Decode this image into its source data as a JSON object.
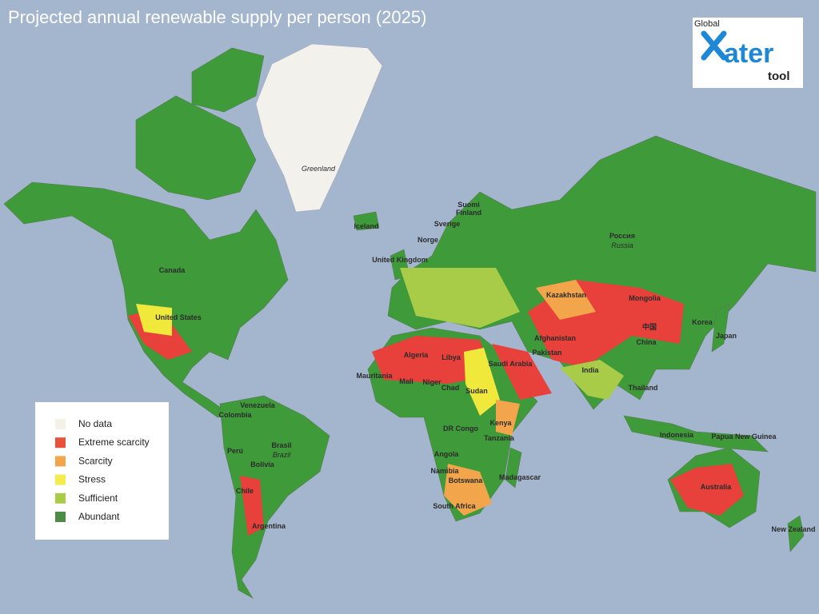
{
  "header": {
    "title": "Projected annual renewable supply per person (2025)"
  },
  "logo": {
    "top": "Global",
    "main": "ater",
    "bottom": "tool"
  },
  "legend": {
    "items": [
      {
        "label": "No data",
        "color": "#f3f1e8"
      },
      {
        "label": "Extreme scarcity",
        "color": "#e8523d"
      },
      {
        "label": "Scarcity",
        "color": "#f2a54a"
      },
      {
        "label": "Stress",
        "color": "#f3ec4a"
      },
      {
        "label": "Sufficient",
        "color": "#a9cc48"
      },
      {
        "label": "Abundant",
        "color": "#4d8c45"
      }
    ]
  },
  "map_labels": [
    "Greenland",
    "Iceland",
    "Canada",
    "United States",
    "Venezuela",
    "Colombia",
    "Brasil",
    "Brazil",
    "Perú",
    "Bolivia",
    "Chile",
    "Argentina",
    "Suomi",
    "Finland",
    "Sverige",
    "Norge",
    "United Kingdom",
    "Россия",
    "Russia",
    "Kazakhstan",
    "Mongolia",
    "中国",
    "China",
    "Japan",
    "Korea",
    "Afghanistan",
    "Pakistan",
    "India",
    "Thailand",
    "Algeria",
    "Libya",
    "Saudi Arabia",
    "Mauritania",
    "Mali",
    "Niger",
    "Chad",
    "Sudan",
    "DR Congo",
    "Kenya",
    "Tanzania",
    "Angola",
    "Namibia",
    "Botswana",
    "South Africa",
    "Madagascar",
    "Indonesia",
    "Papua New Guinea",
    "Australia",
    "New Zealand"
  ]
}
